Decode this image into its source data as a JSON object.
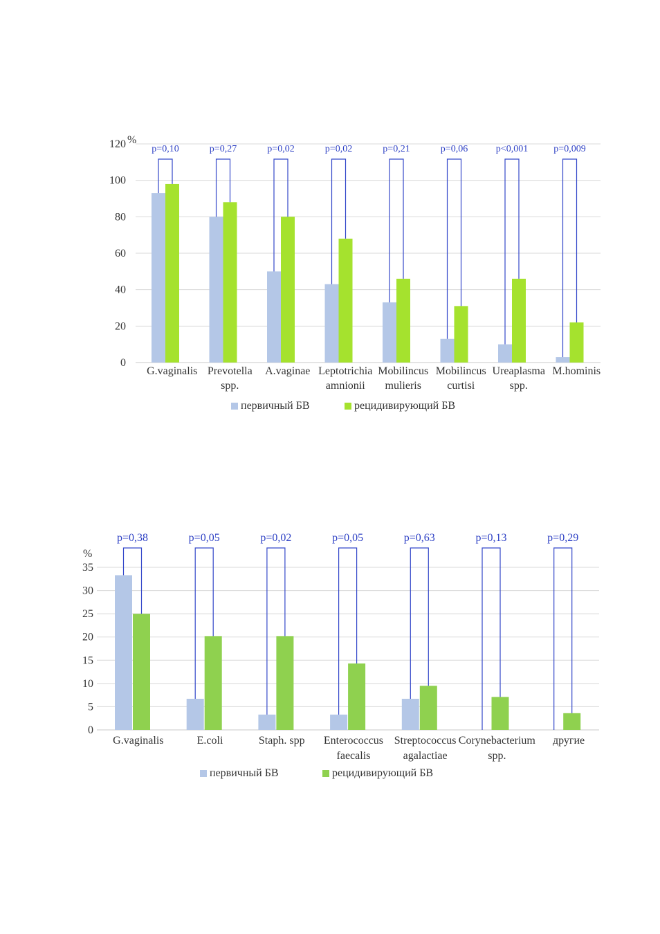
{
  "chart_data": [
    {
      "type": "bar",
      "unit_label": "%",
      "categories": [
        [
          "G.vaginalis"
        ],
        [
          "Prevotella",
          "spp."
        ],
        [
          "A.vaginae"
        ],
        [
          "Leptotrichia",
          "amnionii"
        ],
        [
          "Mobilincus",
          "mulieris"
        ],
        [
          "Mobilincus",
          "curtisi"
        ],
        [
          "Ureaplasma",
          "spp."
        ],
        [
          "M.hominis"
        ]
      ],
      "series": [
        {
          "name": "первичный БВ",
          "color": "#b4c7e7",
          "values": [
            93,
            80,
            50,
            43,
            33,
            13,
            10,
            3
          ]
        },
        {
          "name": "рецидивирующий БВ",
          "color": "#a5e22e",
          "values": [
            98,
            88,
            80,
            68,
            46,
            31,
            46,
            22
          ]
        }
      ],
      "p_values": [
        "p=0,10",
        "p=0,27",
        "p=0,02",
        "p=0,02",
        "p=0,21",
        "p=0,06",
        "p<0,001",
        "p=0,009"
      ],
      "ylim": [
        0,
        120
      ],
      "yticks": [
        0,
        20,
        40,
        60,
        80,
        100,
        120
      ],
      "grid": true,
      "legend_position": "bottom"
    },
    {
      "type": "bar",
      "unit_label": "%",
      "categories": [
        [
          "G.vaginalis"
        ],
        [
          "E.coli"
        ],
        [
          "Staph. spp"
        ],
        [
          "Enterococcus",
          "faecalis"
        ],
        [
          "Streptococcus",
          "agalactiae"
        ],
        [
          "Corynebacterium",
          "spp."
        ],
        [
          "другие"
        ]
      ],
      "series": [
        {
          "name": "первичный БВ",
          "color": "#b4c7e7",
          "values": [
            33.3,
            6.7,
            3.3,
            3.3,
            6.7,
            0,
            0
          ]
        },
        {
          "name": "рецидивирующий БВ",
          "color": "#8fd14f",
          "values": [
            25,
            20.2,
            20.2,
            14.3,
            9.5,
            7.1,
            3.6
          ]
        }
      ],
      "p_values": [
        "p=0,38",
        "p=0,05",
        "p=0,02",
        "p=0,05",
        "p=0,63",
        "p=0,13",
        "p=0,29"
      ],
      "ylim": [
        0,
        35
      ],
      "yticks": [
        0,
        5,
        10,
        15,
        20,
        25,
        30,
        35
      ],
      "grid": true,
      "legend_position": "bottom"
    }
  ]
}
